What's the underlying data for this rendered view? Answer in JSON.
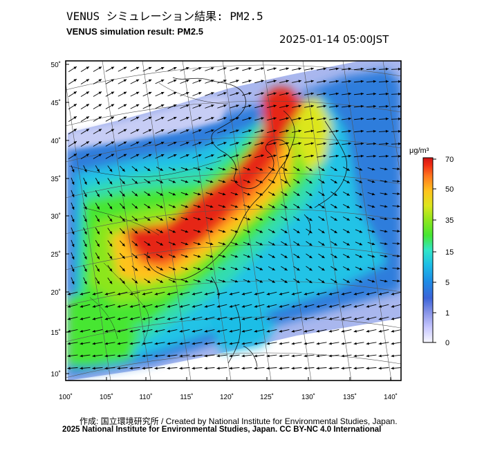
{
  "header": {
    "title_jp": "VENUS シミュレーション結果: PM2.5",
    "title_en": "VENUS simulation result: PM2.5",
    "timestamp": "2025-01-14 05:00JST"
  },
  "map": {
    "lat_ticks": [
      "50˚",
      "45˚",
      "40˚",
      "35˚",
      "30˚",
      "25˚",
      "20˚",
      "15˚",
      "10˚"
    ],
    "lon_ticks": [
      "100˚",
      "105˚",
      "110˚",
      "115˚",
      "120˚",
      "125˚",
      "130˚",
      "135˚",
      "140˚"
    ],
    "lat_range": [
      9,
      51
    ],
    "lon_range": [
      100,
      141
    ],
    "overlay": "wind-vector-arrows"
  },
  "colorbar": {
    "unit": "μg/m³",
    "tick_labels": [
      "70",
      "50",
      "35",
      "15",
      "5",
      "1",
      "0"
    ],
    "colors": [
      "#f8f8ff",
      "#c8c8ff",
      "#8a96e8",
      "#3c64d8",
      "#1e8ce6",
      "#1ebee6",
      "#32e6c8",
      "#46e632",
      "#8ce61e",
      "#dce61e",
      "#ffc31e",
      "#ff781e",
      "#f02d14",
      "#d21414"
    ]
  },
  "footer": {
    "credit": "作成: 国立環境研究所 / Created by National Institute for Environmental Studies, Japan.",
    "copyright": "2025 National Institute for Environmental Studies, Japan. CC BY-NC 4.0 International"
  }
}
